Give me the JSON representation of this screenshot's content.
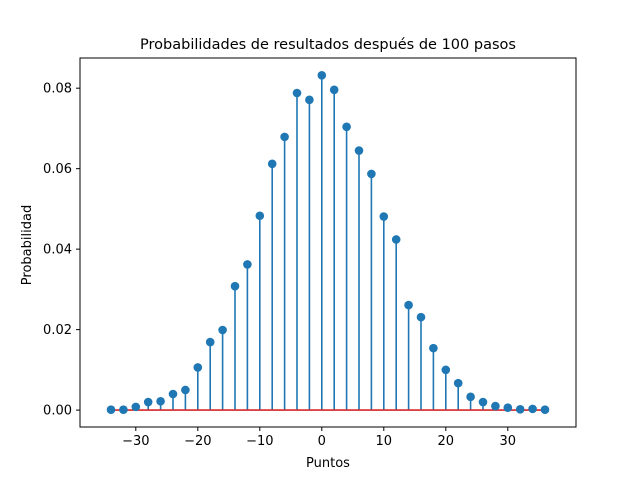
{
  "chart_data": {
    "type": "stem",
    "title": "Probabilidades de resultados después de 100 pasos",
    "xlabel": "Puntos",
    "ylabel": "Probabilidad",
    "xlim": [
      -39,
      41
    ],
    "ylim": [
      -0.0042,
      0.0875
    ],
    "xticks": [
      -30,
      -20,
      -10,
      0,
      10,
      20,
      30
    ],
    "xtick_labels": [
      "−30",
      "−20",
      "−10",
      "0",
      "10",
      "20",
      "30"
    ],
    "yticks": [
      0.0,
      0.02,
      0.04,
      0.06,
      0.08
    ],
    "ytick_labels": [
      "0.00",
      "0.02",
      "0.04",
      "0.06",
      "0.08"
    ],
    "grid": false,
    "colors": {
      "stem": "#1f77b4",
      "marker": "#1f77b4",
      "baseline": "#d62728"
    },
    "x": [
      -34,
      -32,
      -30,
      -28,
      -26,
      -24,
      -22,
      -20,
      -18,
      -16,
      -14,
      -12,
      -10,
      -8,
      -6,
      -4,
      -2,
      0,
      2,
      4,
      6,
      8,
      10,
      12,
      14,
      16,
      18,
      20,
      22,
      24,
      26,
      28,
      30,
      32,
      34,
      36
    ],
    "y": [
      0.0001,
      0.0001,
      0.0008,
      0.002,
      0.0022,
      0.004,
      0.005,
      0.0106,
      0.0169,
      0.0199,
      0.0308,
      0.0362,
      0.0483,
      0.0612,
      0.0679,
      0.0788,
      0.0771,
      0.0832,
      0.0796,
      0.0704,
      0.0645,
      0.0587,
      0.0481,
      0.0424,
      0.0261,
      0.0231,
      0.0154,
      0.01,
      0.0067,
      0.0033,
      0.002,
      0.001,
      0.0006,
      0.0002,
      0.0003,
      0.0001
    ]
  }
}
